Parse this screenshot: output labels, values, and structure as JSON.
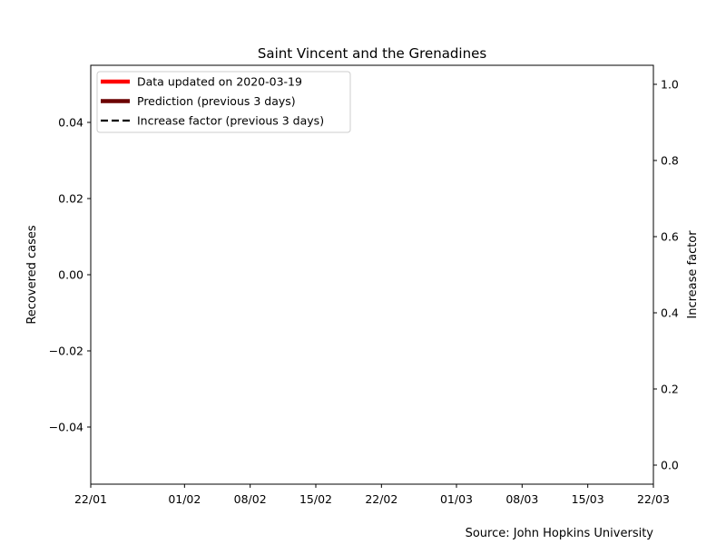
{
  "chart_data": {
    "type": "line",
    "title": "Saint Vincent and the Grenadines",
    "ylabel_left": "Recovered cases",
    "ylabel_right": "Increase factor",
    "source": "Source: John Hopkins University",
    "x_ticks": [
      "22/01",
      "01/02",
      "08/02",
      "15/02",
      "22/02",
      "01/03",
      "08/03",
      "15/03",
      "22/03"
    ],
    "x_tick_day_offsets": [
      0,
      10,
      17,
      24,
      31,
      39,
      46,
      53,
      60
    ],
    "xlim_days": [
      0,
      60
    ],
    "y_left_ticks": [
      -0.04,
      -0.02,
      0.0,
      0.02,
      0.04
    ],
    "y_left_tick_labels": [
      "−0.04",
      "−0.02",
      "0.00",
      "0.02",
      "0.04"
    ],
    "ylim_left": [
      -0.055,
      0.055
    ],
    "y_right_ticks": [
      0.0,
      0.2,
      0.4,
      0.6,
      0.8,
      1.0
    ],
    "y_right_tick_labels": [
      "0.0",
      "0.2",
      "0.4",
      "0.6",
      "0.8",
      "1.0"
    ],
    "ylim_right": [
      -0.05,
      1.05
    ],
    "legend_position": "top-left",
    "series": [
      {
        "name": "Data updated on 2020-03-19",
        "color": "#ff0000",
        "style": "solid-thick",
        "values": []
      },
      {
        "name": "Prediction (previous 3 days)",
        "color": "#6b0000",
        "style": "solid-thick",
        "values": []
      },
      {
        "name": "Increase factor (previous 3 days)",
        "color": "#000000",
        "style": "dashed",
        "values": []
      }
    ]
  }
}
